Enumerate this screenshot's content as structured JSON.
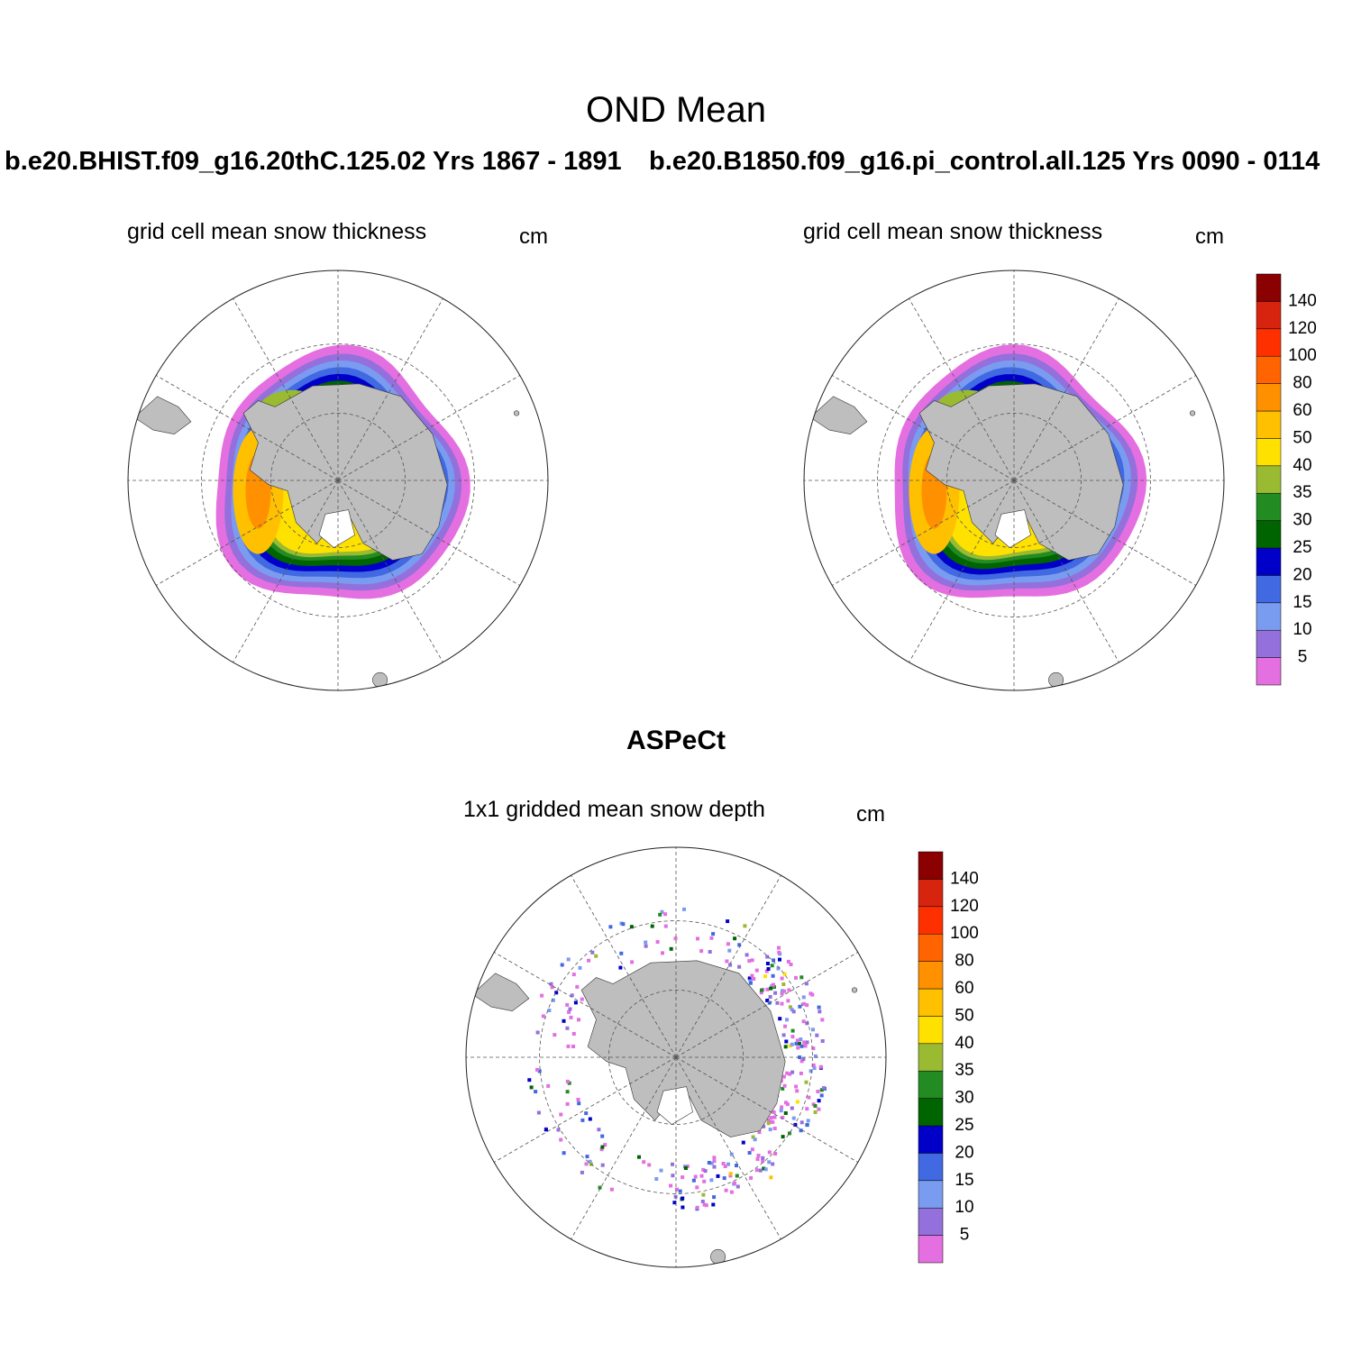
{
  "figure": {
    "title": "OND Mean"
  },
  "panels": [
    {
      "case_label": "b.e20.BHIST.f09_g16.20thC.125.02  Yrs 1867 - 1891",
      "subtitle": "grid cell mean snow thickness",
      "units": "cm"
    },
    {
      "case_label": "b.e20.B1850.f09_g16.pi_control.all.125  Yrs 0090 - 0114",
      "subtitle": "grid cell mean snow thickness",
      "units": "cm"
    },
    {
      "case_label": "ASPeCt",
      "subtitle": "1x1 gridded mean snow depth",
      "units": "cm"
    }
  ],
  "colorbar": {
    "labels": [
      "5",
      "10",
      "15",
      "20",
      "25",
      "30",
      "35",
      "40",
      "50",
      "60",
      "80",
      "100",
      "120",
      "140"
    ],
    "colors": [
      "#e46fe0",
      "#9370db",
      "#7a9cf0",
      "#4169e1",
      "#0000c8",
      "#006400",
      "#228b22",
      "#9aba32",
      "#ffe100",
      "#ffc000",
      "#ff9000",
      "#ff6400",
      "#ff3000",
      "#d7240f",
      "#8b0000"
    ]
  },
  "map_colors": {
    "land": "#bebebe",
    "grid": "#555555"
  }
}
